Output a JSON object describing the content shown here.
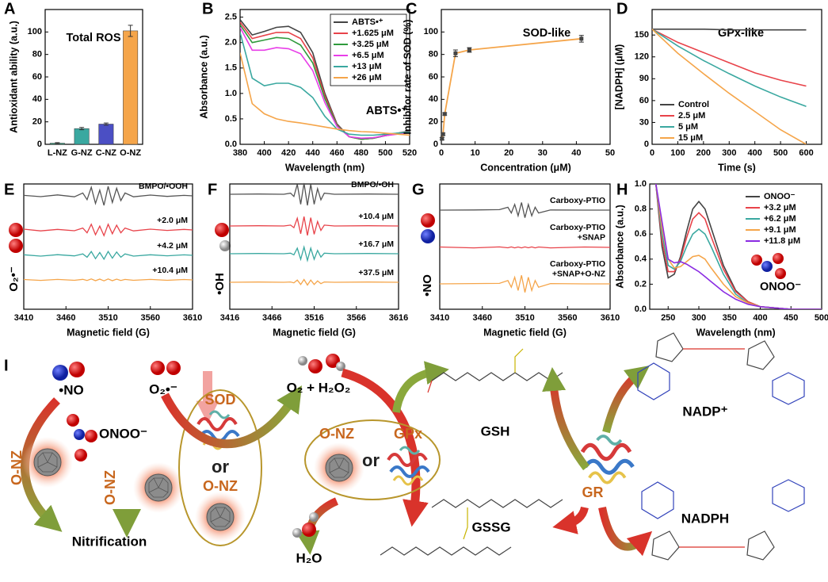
{
  "chart_data": [
    {
      "panel": "A",
      "type": "bar",
      "annotation": "Total ROS",
      "ylabel": "Antioxidant ability (a.u.)",
      "categories": [
        "L-NZ",
        "G-NZ",
        "C-NZ",
        "O-NZ"
      ],
      "values": [
        1,
        14,
        18,
        101
      ],
      "errors": [
        0.5,
        1,
        1,
        5
      ],
      "colors": [
        "#2e9a7a",
        "#3aa8a0",
        "#4b4fc4",
        "#f5a54a"
      ],
      "ylim": [
        0,
        120
      ],
      "yticks": [
        0,
        20,
        40,
        60,
        80,
        100
      ]
    },
    {
      "panel": "B",
      "type": "line",
      "annotation": "ABTS•⁺",
      "xlabel": "Wavelength (nm)",
      "ylabel": "Absorbance (a.u.)",
      "x": [
        380,
        390,
        400,
        410,
        420,
        430,
        440,
        450,
        460,
        470,
        480,
        490,
        500,
        510,
        520
      ],
      "series": [
        {
          "name": "ABTS•⁺",
          "color": "#444444",
          "values": [
            2.45,
            2.15,
            2.22,
            2.3,
            2.32,
            2.2,
            1.8,
            1.0,
            0.4,
            0.15,
            0.1,
            0.12,
            0.18,
            0.22,
            0.26
          ]
        },
        {
          "name": "+1.625 μM",
          "color": "#e8434a",
          "values": [
            2.4,
            2.08,
            2.14,
            2.2,
            2.2,
            2.08,
            1.7,
            0.95,
            0.38,
            0.15,
            0.1,
            0.12,
            0.17,
            0.21,
            0.25
          ]
        },
        {
          "name": "+3.25 μM",
          "color": "#2f9a3c",
          "values": [
            2.35,
            2.0,
            2.05,
            2.1,
            2.08,
            1.95,
            1.6,
            0.9,
            0.37,
            0.15,
            0.1,
            0.12,
            0.17,
            0.21,
            0.24
          ]
        },
        {
          "name": "+6.5 μM",
          "color": "#e83ee8",
          "values": [
            2.3,
            1.85,
            1.85,
            1.9,
            1.88,
            1.78,
            1.45,
            0.82,
            0.35,
            0.15,
            0.12,
            0.13,
            0.17,
            0.2,
            0.23
          ]
        },
        {
          "name": "+13 μM",
          "color": "#3aa8a0",
          "values": [
            2.2,
            1.3,
            1.15,
            1.2,
            1.2,
            1.12,
            0.92,
            0.55,
            0.3,
            0.2,
            0.18,
            0.18,
            0.2,
            0.22,
            0.24
          ]
        },
        {
          "name": "+26 μM",
          "color": "#f5a54a",
          "values": [
            1.8,
            0.8,
            0.6,
            0.5,
            0.45,
            0.42,
            0.38,
            0.34,
            0.3,
            0.27,
            0.25,
            0.24,
            0.22,
            0.2,
            0.18
          ]
        }
      ],
      "xlim": [
        380,
        520
      ],
      "xticks": [
        380,
        400,
        420,
        440,
        460,
        480,
        500,
        520
      ],
      "ylim": [
        0,
        2.65
      ],
      "yticks": [
        {
          "value": 0,
          "label": "0.0"
        },
        0.5,
        {
          "value": 1,
          "label": "1.0"
        },
        1.5,
        {
          "value": 2,
          "label": "2.0"
        },
        2.5
      ],
      "legend": "upper right",
      "legend_frame": true
    },
    {
      "panel": "C",
      "type": "line",
      "annotation": "SOD-like",
      "xlabel": "Concentration (μM)",
      "ylabel": "Inhibitor rate of SOD (%)",
      "x": [
        0.2,
        0.5,
        1,
        4.2,
        8.3,
        41.5
      ],
      "values": [
        5,
        9,
        27,
        81,
        84,
        94
      ],
      "errors": [
        1,
        1,
        1,
        3,
        2,
        3
      ],
      "color": "#f5a54a",
      "marker_color": "#444444",
      "xlim": [
        0,
        50
      ],
      "xticks": [
        0,
        10,
        20,
        30,
        40,
        50
      ],
      "ylim": [
        0,
        120
      ],
      "yticks": [
        0,
        20,
        40,
        60,
        80,
        100
      ]
    },
    {
      "panel": "D",
      "type": "line",
      "annotation": "GPx-like",
      "xlabel": "Time (s)",
      "ylabel": "[NADPH] (μM)",
      "x": [
        0,
        100,
        200,
        300,
        400,
        500,
        600
      ],
      "series": [
        {
          "name": "Control",
          "color": "#444444",
          "values": [
            158,
            158,
            158,
            157,
            157,
            157,
            157
          ]
        },
        {
          "name": "2.5 μM",
          "color": "#e8434a",
          "values": [
            158,
            140,
            126,
            112,
            98,
            88,
            80
          ]
        },
        {
          "name": "5 μM",
          "color": "#3aa8a0",
          "values": [
            158,
            135,
            115,
            97,
            80,
            65,
            52
          ]
        },
        {
          "name": "15 μM",
          "color": "#f5a54a",
          "values": [
            158,
            125,
            97,
            70,
            45,
            20,
            0
          ]
        }
      ],
      "xlim": [
        0,
        660
      ],
      "xticks": [
        0,
        100,
        200,
        300,
        400,
        500,
        600
      ],
      "ylim": [
        0,
        185
      ],
      "yticks": [
        0,
        30,
        60,
        90,
        120,
        150
      ],
      "legend": "lower left",
      "legend_frame": false
    },
    {
      "panel": "E",
      "type": "spectra",
      "xlabel": "Magnetic field (G)",
      "ylabel": "O₂•⁻",
      "x": [
        3410,
        3430,
        3450,
        3470,
        3480,
        3485,
        3490,
        3495,
        3500,
        3505,
        3510,
        3515,
        3520,
        3525,
        3530,
        3540,
        3560,
        3580,
        3600,
        3610
      ],
      "series": [
        {
          "name": "BMPO/•OOH",
          "color": "#555555",
          "values": [
            0.05,
            -0.08,
            0.1,
            -0.1,
            0.3,
            -0.4,
            0.9,
            -0.8,
            0.6,
            -1,
            1,
            -0.7,
            0.8,
            -0.5,
            0.3,
            -0.1,
            0.08,
            -0.06,
            0.05,
            0
          ]
        },
        {
          "name": "+2.0 μM",
          "color": "#e8434a",
          "values": [
            0.08,
            -0.1,
            0.06,
            -0.08,
            0.2,
            -0.3,
            0.6,
            -0.5,
            0.4,
            -0.6,
            0.6,
            -0.4,
            0.5,
            -0.3,
            0.2,
            -0.1,
            0.08,
            -0.05,
            0.06,
            0
          ]
        },
        {
          "name": "+4.2 μM",
          "color": "#3aa8a0",
          "values": [
            0.06,
            -0.08,
            0.07,
            -0.06,
            0.15,
            -0.2,
            0.4,
            -0.35,
            0.3,
            -0.4,
            0.4,
            -0.3,
            0.35,
            -0.2,
            0.15,
            -0.08,
            0.06,
            -0.05,
            0.05,
            0
          ]
        },
        {
          "name": "+10.4 μM",
          "color": "#f5a54a",
          "values": [
            0.04,
            -0.05,
            0.05,
            -0.04,
            0.06,
            -0.06,
            0.1,
            -0.08,
            0.08,
            -0.1,
            0.1,
            -0.08,
            0.08,
            -0.06,
            0.05,
            -0.04,
            0.05,
            -0.04,
            0.04,
            0
          ]
        }
      ],
      "xlim": [
        3410,
        3610
      ],
      "xticks": [
        3410,
        3460,
        3510,
        3560,
        3610
      ]
    },
    {
      "panel": "F",
      "type": "spectra",
      "xlabel": "Magnetic field (G)",
      "ylabel": "•OH",
      "x": [
        3416,
        3450,
        3480,
        3488,
        3492,
        3496,
        3500,
        3504,
        3508,
        3512,
        3516,
        3520,
        3524,
        3528,
        3540,
        3580,
        3616
      ],
      "series": [
        {
          "name": "BMPO/•OH",
          "color": "#555555",
          "values": [
            0,
            0.02,
            0,
            0.1,
            -0.2,
            0.9,
            -0.9,
            1,
            -1,
            0.9,
            -0.9,
            0.5,
            -0.5,
            0.1,
            0,
            0.02,
            0
          ]
        },
        {
          "name": "+10.4 μM",
          "color": "#e8434a",
          "values": [
            0,
            0.02,
            0,
            0.08,
            -0.15,
            0.7,
            -0.7,
            0.85,
            -0.85,
            0.75,
            -0.75,
            0.4,
            -0.4,
            0.08,
            0,
            0.02,
            0
          ]
        },
        {
          "name": "+16.7 μM",
          "color": "#3aa8a0",
          "values": [
            0,
            0.02,
            0,
            0.05,
            -0.1,
            0.5,
            -0.5,
            0.6,
            -0.6,
            0.5,
            -0.5,
            0.3,
            -0.3,
            0.05,
            0,
            0.02,
            0
          ]
        },
        {
          "name": "+37.5 μM",
          "color": "#f5a54a",
          "values": [
            0,
            0.02,
            0,
            0.03,
            -0.05,
            0.2,
            -0.2,
            0.25,
            -0.25,
            0.2,
            -0.2,
            0.12,
            -0.12,
            0.03,
            0,
            0.02,
            0
          ]
        }
      ],
      "xlim": [
        3416,
        3616
      ],
      "xticks": [
        3416,
        3466,
        3516,
        3566,
        3616
      ]
    },
    {
      "panel": "G",
      "type": "spectra",
      "xlabel": "Magnetic field (G)",
      "ylabel": "•NO",
      "x": [
        3410,
        3450,
        3480,
        3490,
        3494,
        3498,
        3502,
        3506,
        3510,
        3514,
        3518,
        3522,
        3526,
        3540,
        3580,
        3610
      ],
      "series": [
        {
          "name": "Carboxy-PTIO",
          "color": "#555555",
          "values": [
            0,
            0.02,
            0.05,
            0.3,
            -0.3,
            0.6,
            -0.6,
            0.8,
            -0.8,
            0.6,
            -0.6,
            0.3,
            -0.3,
            0.02,
            0,
            0
          ]
        },
        {
          "name": "Carboxy-PTIO\n+SNAP",
          "color": "#e8434a",
          "values": [
            0.04,
            -0.05,
            0.05,
            -0.04,
            0.05,
            -0.05,
            0.04,
            -0.05,
            0.05,
            -0.04,
            0.05,
            -0.05,
            0.04,
            -0.05,
            0.04,
            0
          ]
        },
        {
          "name": "Carboxy-PTIO\n+SNAP+O-NZ",
          "color": "#f5a54a",
          "values": [
            0,
            0.03,
            0.05,
            0.35,
            -0.35,
            0.7,
            -0.7,
            0.9,
            -0.9,
            0.7,
            -0.7,
            0.35,
            -0.35,
            0.03,
            0,
            0
          ]
        }
      ],
      "xlim": [
        3410,
        3610
      ],
      "xticks": [
        3410,
        3460,
        3510,
        3560,
        3610
      ]
    },
    {
      "panel": "H",
      "type": "line",
      "annotation": "ONOO⁻",
      "xlabel": "Wavelength (nm)",
      "ylabel": "Absorbance (a.u.)",
      "x": [
        230,
        240,
        250,
        260,
        270,
        280,
        290,
        300,
        310,
        320,
        340,
        360,
        380,
        400,
        450,
        500
      ],
      "series": [
        {
          "name": "ONOO⁻",
          "color": "#444444",
          "values": [
            1.0,
            0.5,
            0.25,
            0.28,
            0.42,
            0.62,
            0.8,
            0.86,
            0.8,
            0.65,
            0.35,
            0.15,
            0.06,
            0.02,
            0,
            0
          ]
        },
        {
          "name": "+3.2 μM",
          "color": "#e8434a",
          "values": [
            1.0,
            0.55,
            0.3,
            0.3,
            0.4,
            0.57,
            0.72,
            0.77,
            0.72,
            0.58,
            0.32,
            0.14,
            0.06,
            0.02,
            0,
            0
          ]
        },
        {
          "name": "+6.2 μM",
          "color": "#3aa8a0",
          "values": [
            1.0,
            0.6,
            0.35,
            0.32,
            0.38,
            0.5,
            0.6,
            0.64,
            0.6,
            0.5,
            0.28,
            0.12,
            0.05,
            0.02,
            0,
            0
          ]
        },
        {
          "name": "+9.1 μM",
          "color": "#f5a54a",
          "values": [
            1.0,
            0.65,
            0.4,
            0.33,
            0.34,
            0.38,
            0.42,
            0.43,
            0.4,
            0.33,
            0.2,
            0.1,
            0.05,
            0.02,
            0,
            0
          ]
        },
        {
          "name": "+11.8 μM",
          "color": "#8a2be2",
          "values": [
            1.0,
            0.7,
            0.4,
            0.37,
            0.38,
            0.36,
            0.33,
            0.3,
            0.26,
            0.22,
            0.14,
            0.08,
            0.04,
            0.02,
            0,
            0
          ]
        }
      ],
      "xlim": [
        220,
        500
      ],
      "xticks": [
        250,
        300,
        350,
        400,
        450,
        500
      ],
      "ylim": [
        0,
        1
      ],
      "yticks": [
        {
          "value": 0,
          "label": "0.0"
        },
        0.2,
        0.4,
        0.6,
        0.8,
        {
          "value": 1,
          "label": "1.0"
        }
      ],
      "legend": "upper right",
      "legend_frame": false
    }
  ],
  "diagram": {
    "panel": "I",
    "no": "•NO",
    "superoxide": "O₂•⁻",
    "products": "O₂ + H₂O₂",
    "peroxynitrite": "ONOO⁻",
    "sod": "SOD",
    "or_1": "or",
    "onz_sod": "O-NZ",
    "onz_left": "O-NZ",
    "onz_center": "O-NZ",
    "nitrification": "Nitrification",
    "onz_gpx": "O-NZ",
    "or_2": "or",
    "gpx": "GPx",
    "water": "H₂O",
    "gsh": "GSH",
    "gssg": "GSSG",
    "gr": "GR",
    "nadp": "NADP⁺",
    "nadph": "NADPH"
  }
}
